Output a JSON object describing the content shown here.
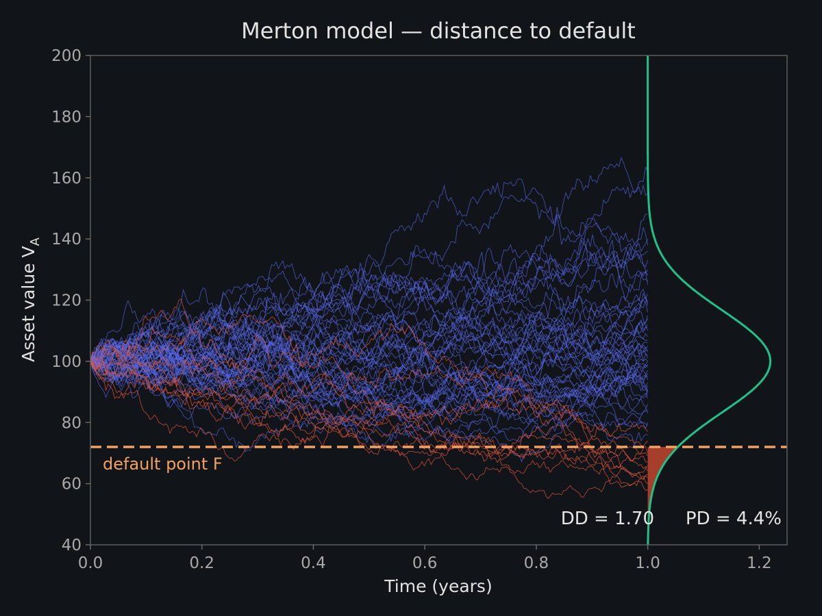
{
  "chart_data": {
    "type": "line",
    "title": "Merton model — distance to default",
    "xlabel": "Time (years)",
    "ylabel": "Asset value V",
    "ylabel_sub": "A",
    "xlim": [
      0.0,
      1.25
    ],
    "ylim": [
      40,
      200
    ],
    "xticks": [
      "0.0",
      "0.2",
      "0.4",
      "0.6",
      "0.8",
      "1.0",
      "1.2"
    ],
    "yticks": [
      "40",
      "60",
      "80",
      "100",
      "120",
      "140",
      "160",
      "180",
      "200"
    ],
    "grid": false,
    "default_point": {
      "label": "default point F",
      "value": 72
    },
    "annotation_dd": "DD = 1.70",
    "annotation_pd": "PD = 4.4%",
    "simulation": {
      "paths": 60,
      "steps": 252,
      "V0": 100,
      "horizon": 1.0,
      "path_ends": [
        84,
        90,
        95,
        98,
        100,
        102,
        105,
        108,
        112,
        116,
        120,
        125,
        130,
        136,
        148,
        155,
        162,
        76,
        80,
        88,
        92,
        97,
        103,
        110,
        118,
        128,
        140,
        86,
        94,
        100,
        107,
        114,
        122,
        133,
        79,
        83,
        91,
        99,
        104,
        111,
        119,
        126,
        138,
        96,
        101,
        106,
        89,
        93,
        115,
        58,
        60,
        62,
        64,
        66,
        69,
        70,
        74,
        77,
        63,
        67
      ]
    },
    "terminal_distribution": {
      "mean": 100,
      "sd": 16.7,
      "peak_x_offset": 0.22,
      "shaded_below": 72
    },
    "colors": {
      "background": "#111418",
      "survive_path": "#5a6af0",
      "default_path": "#e0553c",
      "default_line": "#f4a261",
      "density": "#1fc28a",
      "shade": "#b8432f",
      "axis": "#6a6a6a"
    }
  }
}
